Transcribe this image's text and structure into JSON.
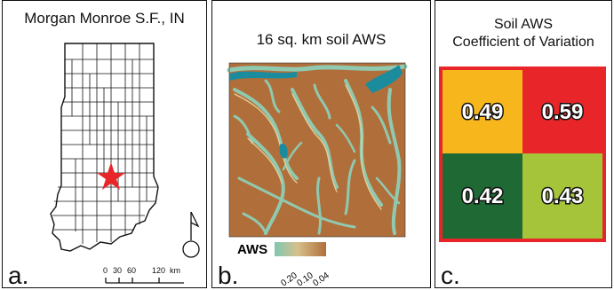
{
  "panel_a": {
    "title": "Morgan Monroe S.F., IN",
    "letter": "a.",
    "scale_labels": [
      "0",
      "30",
      "60",
      "120",
      "km"
    ],
    "marker_color": "#e8262a",
    "marker_icon": "star-icon",
    "north_arrow_icon": "north-arrow-icon"
  },
  "panel_b": {
    "title": "16 sq. km soil AWS",
    "letter": "b.",
    "legend_title": "AWS",
    "legend_ticks": [
      "0.20",
      "0.10",
      "0.04"
    ],
    "colors": {
      "low": "#b06f3a",
      "mid": "#d7c08c",
      "high": "#7fc7b3",
      "water": "#1b8b9e"
    }
  },
  "panel_c": {
    "title_line1": "Soil AWS",
    "title_line2": "Coefficient of Variation",
    "letter": "c.",
    "grid": [
      {
        "value": "0.49",
        "color": "#f7b61c"
      },
      {
        "value": "0.59",
        "color": "#e8262a"
      },
      {
        "value": "0.42",
        "color": "#1f6a34"
      },
      {
        "value": "0.43",
        "color": "#a6c43a"
      }
    ],
    "border_color": "#e8262a"
  }
}
